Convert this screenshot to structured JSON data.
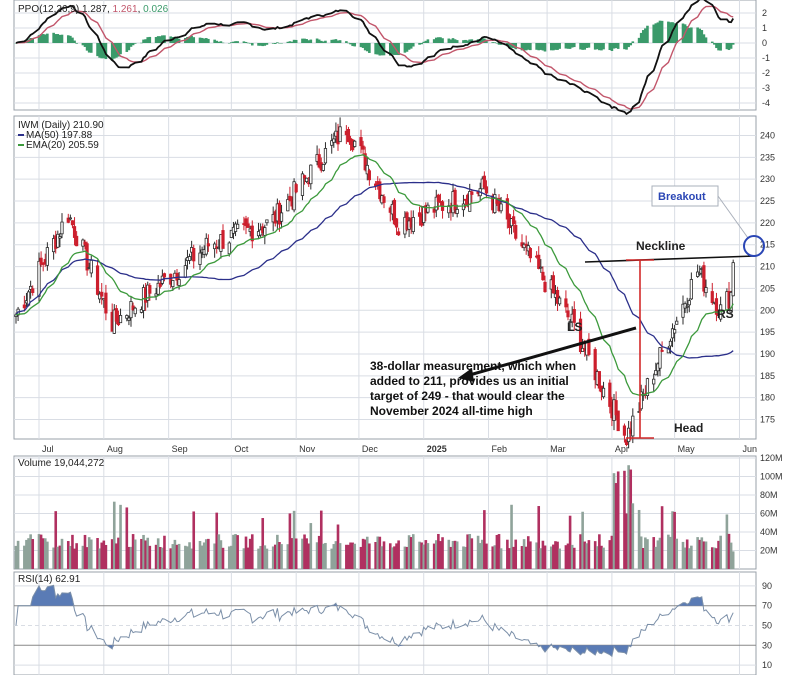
{
  "colors": {
    "grid": "#d9dde4",
    "panel_border": "#9aa0aa",
    "up": "#2b2b2b",
    "down": "#cc1f2d",
    "ma50": "#2b2f8a",
    "ema20": "#3c9a3c",
    "ppo_line": "#111111",
    "ppo_signal": "#c2566b",
    "ppo_hist": "#3a9a6a",
    "vol_up": "#8fa39a",
    "vol_down": "#b03060",
    "rsi": "#7b8fa8",
    "accent_blue": "#2a46b5"
  },
  "ppo_panel": {
    "label": "PPO(12,26,9)",
    "v1": "1.287",
    "v2": "1.261",
    "v3": "0.026",
    "yticks": [
      "2",
      "1",
      "0",
      "-1",
      "-2",
      "-3",
      "-4"
    ]
  },
  "price_panel": {
    "label": "IWM (Daily)",
    "last": "210.90",
    "ma_label": "MA(50)",
    "ma_value": "197.88",
    "ema_label": "EMA(20)",
    "ema_value": "205.59",
    "yticks": [
      "240",
      "235",
      "230",
      "225",
      "220",
      "215",
      "210",
      "205",
      "200",
      "195",
      "190",
      "185",
      "180",
      "175"
    ],
    "xticks": [
      {
        "label": "Jul",
        "bold": false
      },
      {
        "label": "Aug",
        "bold": false
      },
      {
        "label": "Sep",
        "bold": false
      },
      {
        "label": "Oct",
        "bold": false
      },
      {
        "label": "Nov",
        "bold": false
      },
      {
        "label": "Dec",
        "bold": false
      },
      {
        "label": "2025",
        "bold": true
      },
      {
        "label": "Feb",
        "bold": false
      },
      {
        "label": "Mar",
        "bold": false
      },
      {
        "label": "Apr",
        "bold": false
      },
      {
        "label": "May",
        "bold": false
      },
      {
        "label": "Jun",
        "bold": false
      }
    ],
    "annotations": {
      "breakout": "Breakout",
      "neckline": "Neckline",
      "ls": "LS",
      "rs": "RS",
      "head": "Head",
      "note_lines": [
        "38-dollar measurement, which when",
        "added to 211, provides us an initial",
        "target of 249 - that would clear the",
        "November 2024 all-time high"
      ]
    }
  },
  "volume_panel": {
    "label": "Volume",
    "value": "19,044,272",
    "yticks": [
      "120M",
      "100M",
      "80M",
      "60M",
      "40M",
      "20M"
    ]
  },
  "rsi_panel": {
    "label": "RSI(14)",
    "value": "62.91",
    "yticks": [
      "90",
      "70",
      "50",
      "30",
      "10"
    ]
  },
  "chart_data": {
    "type": "candlestick",
    "title": "IWM (Daily)",
    "x_range": [
      "2024-06",
      "2025-06"
    ],
    "price_ylim": [
      171,
      244
    ],
    "key_points": [
      {
        "date": "2024-06",
        "close": 199
      },
      {
        "date": "2024-07-15",
        "close": 222
      },
      {
        "date": "2024-08-05",
        "close": 197
      },
      {
        "date": "2024-09",
        "close": 215
      },
      {
        "date": "2024-10",
        "close": 220
      },
      {
        "date": "2024-11-25",
        "close": 242
      },
      {
        "date": "2024-12-20",
        "close": 220
      },
      {
        "date": "2025-01-30",
        "close": 228
      },
      {
        "date": "2025-03-13",
        "close": 197
      },
      {
        "date": "2025-04-08",
        "close": 171
      },
      {
        "date": "2025-04-21",
        "close": 186
      },
      {
        "date": "2025-05-12",
        "close": 209
      },
      {
        "date": "2025-05-23",
        "close": 200
      },
      {
        "date": "2025-06-06",
        "close": 210.9
      }
    ],
    "ma50_last": 197.88,
    "ema20_last": 205.59,
    "neckline_level": 209,
    "head_low": 171,
    "measurement_dollars": 38,
    "breakout_level": 211,
    "target": 249,
    "volume_ylim_millions": [
      0,
      120
    ],
    "volume_last": 19044272,
    "rsi_last": 62.91,
    "rsi_ylim": [
      0,
      100
    ],
    "ppo": {
      "ppo": 1.287,
      "signal": 1.261,
      "histogram": 0.026,
      "ylim": [
        -4.2,
        2.6
      ]
    }
  }
}
